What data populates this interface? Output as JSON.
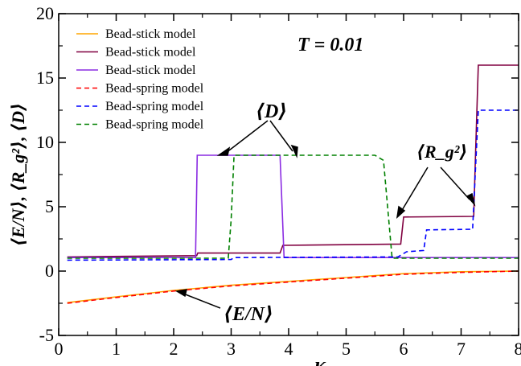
{
  "chart_data": {
    "type": "line",
    "title": "",
    "xlabel": "κ",
    "ylabel": "⟨E/N⟩, ⟨R_g²⟩, ⟨D⟩",
    "xlim": [
      0,
      8
    ],
    "ylim": [
      -5,
      20
    ],
    "x_ticks": [
      "0",
      "1",
      "2",
      "3",
      "4",
      "5",
      "6",
      "7",
      "8"
    ],
    "y_ticks": [
      "-5",
      "0",
      "5",
      "10",
      "15",
      "20"
    ],
    "grid": false,
    "legend_position": "top-left",
    "annotation_temperature": "T = 0.01",
    "annotations": [
      "⟨D⟩",
      "⟨R_g²⟩",
      "⟨E/N⟩"
    ],
    "series": [
      {
        "name": "Bead-stick model",
        "color": "#ffa500",
        "dash": "solid",
        "x": [
          0.15,
          1,
          2,
          3,
          4,
          5,
          6,
          7,
          8
        ],
        "y": [
          -2.45,
          -2.0,
          -1.5,
          -1.1,
          -0.8,
          -0.5,
          -0.2,
          -0.05,
          0
        ]
      },
      {
        "name": "Bead-stick model",
        "color": "#800040",
        "dash": "solid",
        "x": [
          0.15,
          2.4,
          2.42,
          3.85,
          3.9,
          5.95,
          6.0,
          7.22,
          7.25,
          7.3,
          8
        ],
        "y": [
          1.1,
          1.2,
          1.4,
          1.4,
          2.0,
          2.1,
          4.2,
          4.25,
          9.0,
          16.0,
          16.0
        ]
      },
      {
        "name": "Bead-stick model",
        "color": "#8a2be2",
        "dash": "solid",
        "x": [
          0.15,
          2.38,
          2.41,
          3.85,
          3.92,
          8
        ],
        "y": [
          1.05,
          1.05,
          9.0,
          9.0,
          1.05,
          1.05
        ]
      },
      {
        "name": "Bead-spring model",
        "color": "#ff0000",
        "dash": "dashed",
        "x": [
          0.15,
          1,
          2,
          3,
          4,
          5,
          6,
          7,
          8
        ],
        "y": [
          -2.5,
          -2.05,
          -1.55,
          -1.15,
          -0.85,
          -0.55,
          -0.25,
          -0.1,
          0
        ]
      },
      {
        "name": "Bead-spring model",
        "color": "#0000ff",
        "dash": "dashed",
        "x": [
          0.15,
          3.0,
          3.05,
          5.9,
          6.05,
          6.35,
          6.4,
          7.2,
          7.3,
          8
        ],
        "y": [
          0.85,
          0.9,
          1.05,
          1.1,
          1.5,
          1.6,
          3.2,
          3.25,
          12.5,
          12.5
        ]
      },
      {
        "name": "Bead-spring model",
        "color": "#008000",
        "dash": "dashed",
        "x": [
          0.15,
          2.95,
          3.0,
          3.05,
          5.5,
          5.65,
          5.8,
          8
        ],
        "y": [
          1.0,
          1.0,
          4.0,
          9.0,
          9.0,
          8.6,
          1.0,
          1.0
        ]
      }
    ]
  }
}
